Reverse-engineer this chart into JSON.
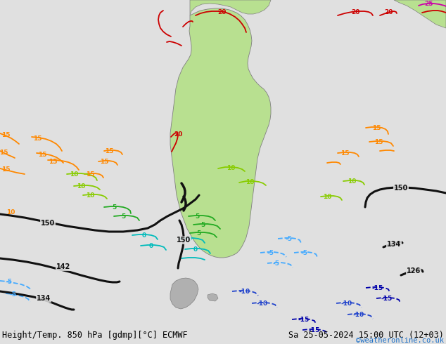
{
  "title_left": "Height/Temp. 850 hPa [gdmp][°C] ECMWF",
  "title_right": "Sa 25-05-2024 15:00 UTC (12+03)",
  "credit": "©weatheronline.co.uk",
  "bg_color": "#e0e0e0",
  "land_color": "#b8e090",
  "land_edge": "#808080",
  "figsize": [
    6.34,
    4.9
  ],
  "dpi": 100,
  "credit_color": "#1a6ec7",
  "font_size_title": 8.5,
  "font_size_credit": 7.5
}
